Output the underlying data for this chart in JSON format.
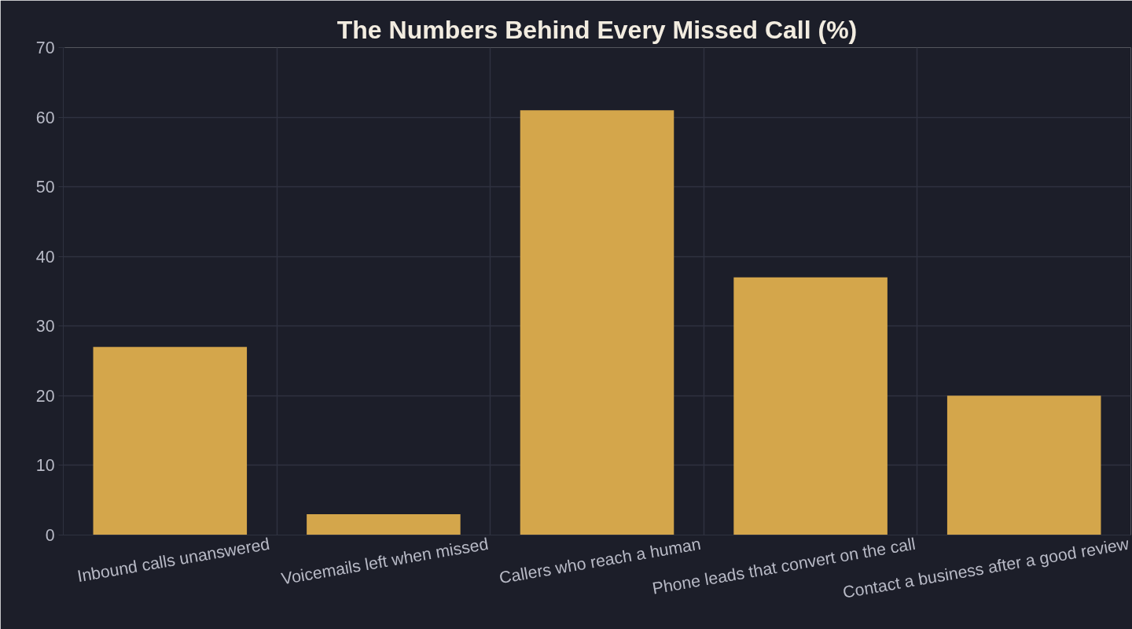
{
  "chart_data": {
    "type": "bar",
    "title": "The Numbers Behind Every Missed Call (%)",
    "categories": [
      "Inbound calls unanswered",
      "Voicemails left when missed",
      "Callers who reach a human",
      "Phone leads that convert on the call",
      "Contact a business after a good review"
    ],
    "values": [
      27,
      3,
      61,
      37,
      20
    ],
    "color": "#d4a64b",
    "ylim": [
      0,
      70
    ],
    "yticks": [
      0,
      10,
      20,
      30,
      40,
      50,
      60,
      70
    ],
    "grid": true
  }
}
